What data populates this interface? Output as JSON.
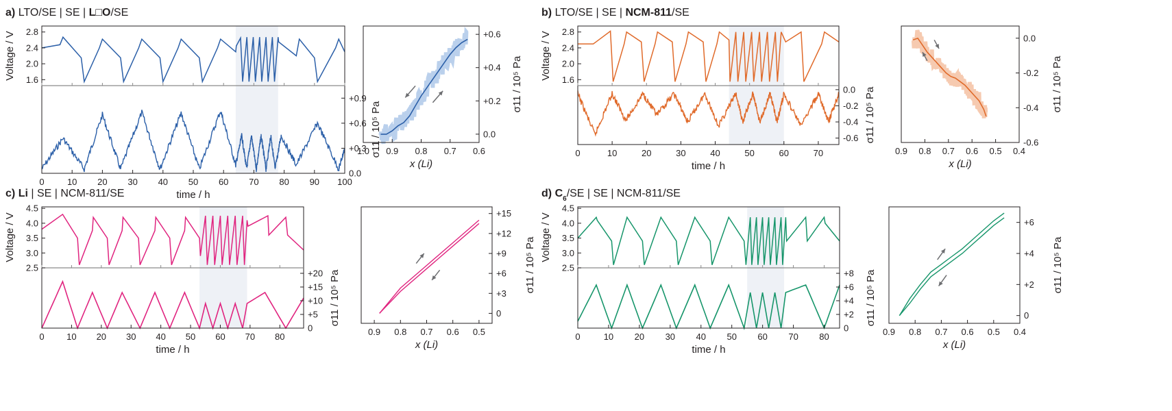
{
  "colors": {
    "a": "#2b5fa8",
    "a_light": "#9dbce4",
    "b": "#e06a2a",
    "b_light": "#f2b48e",
    "c": "#e0247f",
    "d": "#16956a",
    "axis": "#231f20",
    "shade": "#eef1f6",
    "arrow": "#6d6e71"
  },
  "chart_data": [
    {
      "panel": "a",
      "letter": "a)",
      "title_parts": [
        {
          "t": "LTO/SE | SE | ",
          "b": false
        },
        {
          "t": "L",
          "b": true
        },
        {
          "t": "□",
          "b": false
        },
        {
          "t": "O",
          "b": true
        },
        {
          "t": "/SE",
          "b": false
        }
      ],
      "type": "line",
      "time": {
        "xlabel": "time / h",
        "xlim": [
          0,
          100
        ],
        "xticks": [
          0,
          10,
          20,
          30,
          40,
          50,
          60,
          70,
          80,
          90,
          100
        ],
        "xticklabels": [
          "0",
          "10",
          "20",
          "30",
          "40",
          "50",
          "60",
          "70",
          "80",
          "90",
          "100"
        ],
        "shaded_range": [
          64,
          78
        ]
      },
      "voltage": {
        "ylabel": "Voltage / V",
        "ylim": [
          1.45,
          2.95
        ],
        "yticks": [
          1.6,
          2.0,
          2.4,
          2.8
        ],
        "yticklabels": [
          "1.6",
          "2.0",
          "2.4",
          "2.8"
        ],
        "t": [
          0,
          6,
          7,
          13,
          14,
          19,
          20,
          26,
          27,
          32,
          33,
          39,
          40,
          45,
          46,
          52,
          53,
          58,
          59,
          64,
          64.2,
          65.6,
          66.3,
          67.7,
          68.4,
          69.8,
          70.5,
          71.9,
          72.6,
          74,
          74.7,
          76.1,
          76.8,
          78,
          78.2,
          84,
          85,
          90,
          91,
          97,
          98,
          100
        ],
        "v": [
          2.4,
          2.48,
          2.67,
          2.15,
          1.55,
          2.4,
          2.62,
          2.15,
          1.55,
          2.4,
          2.62,
          2.15,
          1.55,
          2.4,
          2.62,
          2.15,
          1.55,
          2.4,
          2.62,
          2.3,
          2.45,
          2.65,
          1.55,
          2.67,
          1.55,
          2.67,
          1.55,
          2.67,
          1.55,
          2.67,
          1.55,
          2.67,
          1.55,
          2.67,
          2.55,
          2.2,
          2.62,
          2.15,
          1.55,
          2.4,
          2.62,
          2.3
        ]
      },
      "stress": {
        "ylabel": "σ11 / 10⁵ Pa",
        "ylim": [
          0,
          1.05
        ],
        "yticks": [
          0,
          0.3,
          0.6,
          0.9
        ],
        "yticklabels": [
          "0.0",
          "+0.3",
          "+0.6",
          "+0.9"
        ],
        "t": [
          0,
          7,
          14,
          20,
          26,
          33,
          39,
          46,
          52,
          59,
          64,
          66,
          67.6,
          69.2,
          70.8,
          72.4,
          74,
          75.6,
          77,
          79,
          84,
          91,
          98,
          100
        ],
        "s": [
          0.05,
          0.42,
          0.05,
          0.7,
          0.05,
          0.73,
          0.05,
          0.72,
          0.05,
          0.75,
          0.1,
          0.45,
          0.05,
          0.45,
          0.05,
          0.45,
          0.05,
          0.45,
          0.05,
          0.45,
          0.1,
          0.6,
          0.05,
          0.3
        ]
      },
      "scatter": {
        "xlabel": "x (Li)",
        "xlim": [
          1.0,
          0.6
        ],
        "xticks": [
          1.0,
          0.9,
          0.8,
          0.7,
          0.6
        ],
        "xticklabels": [
          "1.0",
          "0.9",
          "0.8",
          "0.7",
          "0.6"
        ],
        "ylabel": "σ11 / 10⁵ Pa",
        "ylim": [
          -0.05,
          0.65
        ],
        "yticks": [
          0,
          0.2,
          0.4,
          0.6
        ],
        "yticklabels": [
          "0.0",
          "+0.2",
          "+0.4",
          "+0.6"
        ],
        "x": [
          0.94,
          0.92,
          0.9,
          0.88,
          0.86,
          0.84,
          0.82,
          0.8,
          0.78,
          0.76,
          0.74,
          0.72,
          0.7,
          0.68,
          0.66,
          0.64
        ],
        "y": [
          0.0,
          0.0,
          0.02,
          0.05,
          0.07,
          0.11,
          0.17,
          0.23,
          0.28,
          0.33,
          0.38,
          0.43,
          0.48,
          0.52,
          0.55,
          0.57
        ],
        "spread": 0.06,
        "arrows": [
          {
            "x": 0.82,
            "y": 0.29,
            "dx": 0.035,
            "dy": -0.07
          },
          {
            "x": 0.76,
            "y": 0.19,
            "dx": -0.035,
            "dy": 0.07
          }
        ]
      }
    },
    {
      "panel": "b",
      "letter": "b)",
      "title_parts": [
        {
          "t": "LTO/SE | SE | ",
          "b": false
        },
        {
          "t": "NCM-811",
          "b": true
        },
        {
          "t": "/SE",
          "b": false
        }
      ],
      "type": "line",
      "time": {
        "xlabel": "time / h",
        "xlim": [
          0,
          76
        ],
        "xticks": [
          0,
          10,
          20,
          30,
          40,
          50,
          60,
          70
        ],
        "xticklabels": [
          "0",
          "10",
          "20",
          "30",
          "40",
          "50",
          "60",
          "70"
        ],
        "shaded_range": [
          44,
          60
        ]
      },
      "voltage": {
        "ylabel": "Voltage / V",
        "ylim": [
          1.45,
          2.95
        ],
        "yticks": [
          1.6,
          2.0,
          2.4,
          2.8
        ],
        "yticklabels": [
          "1.6",
          "2.0",
          "2.4",
          "2.8"
        ],
        "t": [
          0,
          4.5,
          5.3,
          9.5,
          10.3,
          13.5,
          14.2,
          18.5,
          19.3,
          22.5,
          23.2,
          27.5,
          28.3,
          31.5,
          32.2,
          36.5,
          37.3,
          40.5,
          41.2,
          44,
          44.3,
          46,
          46.6,
          48.3,
          48.9,
          50.6,
          51.2,
          52.9,
          53.5,
          55.2,
          55.8,
          57.5,
          58.1,
          59.2,
          60.5,
          65,
          65.8,
          71,
          71.8,
          76
        ],
        "v": [
          2.5,
          2.5,
          2.55,
          2.82,
          1.55,
          2.5,
          2.8,
          2.55,
          1.55,
          2.5,
          2.8,
          2.55,
          1.55,
          2.5,
          2.8,
          2.55,
          1.55,
          2.5,
          2.8,
          2.6,
          1.55,
          2.8,
          1.55,
          2.8,
          1.55,
          2.8,
          1.55,
          2.8,
          1.55,
          2.8,
          1.55,
          2.8,
          1.55,
          2.8,
          2.55,
          2.8,
          1.55,
          2.5,
          2.8,
          2.55
        ]
      },
      "stress": {
        "ylabel": "σ11 / 10⁵ Pa",
        "ylim": [
          -0.68,
          0.05
        ],
        "yticks": [
          0,
          -0.2,
          -0.4,
          -0.6
        ],
        "yticklabels": [
          "0.0",
          "-0.2",
          "-0.4",
          "-0.6"
        ],
        "t": [
          0,
          5,
          10,
          14,
          19,
          23,
          28,
          32,
          37,
          41,
          46,
          48,
          51,
          53,
          56,
          58,
          60,
          65,
          70,
          73,
          76
        ],
        "s": [
          -0.05,
          -0.56,
          -0.05,
          -0.38,
          -0.05,
          -0.32,
          -0.05,
          -0.4,
          -0.05,
          -0.45,
          -0.05,
          -0.4,
          -0.05,
          -0.4,
          -0.05,
          -0.4,
          -0.05,
          -0.45,
          -0.05,
          -0.4,
          -0.05
        ]
      },
      "scatter": {
        "xlabel": "x (Li)",
        "xlim": [
          0.9,
          0.4
        ],
        "xticks": [
          0.9,
          0.8,
          0.7,
          0.6,
          0.5,
          0.4
        ],
        "xticklabels": [
          "0.9",
          "0.8",
          "0.7",
          "0.6",
          "0.5",
          "0.4"
        ],
        "ylabel": "σ11 / 10⁵ Pa",
        "ylim": [
          -0.6,
          0.07
        ],
        "yticks": [
          0,
          -0.2,
          -0.4,
          -0.6
        ],
        "yticklabels": [
          "0.0",
          "-0.2",
          "-0.4",
          "-0.6"
        ],
        "x": [
          0.85,
          0.83,
          0.81,
          0.79,
          0.77,
          0.75,
          0.73,
          0.71,
          0.69,
          0.67,
          0.65,
          0.63,
          0.61,
          0.59,
          0.57,
          0.55,
          0.54
        ],
        "y": [
          -0.01,
          0.0,
          -0.04,
          -0.08,
          -0.11,
          -0.14,
          -0.17,
          -0.2,
          -0.22,
          -0.23,
          -0.25,
          -0.27,
          -0.3,
          -0.33,
          -0.36,
          -0.41,
          -0.45
        ],
        "spread": 0.05,
        "arrows": [
          {
            "x": 0.76,
            "y": -0.01,
            "dx": -0.02,
            "dy": -0.05
          },
          {
            "x": 0.79,
            "y": -0.13,
            "dx": 0.02,
            "dy": 0.05
          }
        ]
      }
    },
    {
      "panel": "c",
      "letter": "c)",
      "title_parts": [
        {
          "t": "Li",
          "b": true
        },
        {
          "t": " | SE | NCM-811/SE",
          "b": false
        }
      ],
      "type": "line",
      "time": {
        "xlabel": "time / h",
        "xlim": [
          0,
          88
        ],
        "xticks": [
          0,
          10,
          20,
          30,
          40,
          50,
          60,
          70,
          80
        ],
        "xticklabels": [
          "0",
          "10",
          "20",
          "30",
          "40",
          "50",
          "60",
          "70",
          "80"
        ],
        "shaded_range": [
          53,
          69
        ]
      },
      "voltage": {
        "ylabel": "Voltage / V",
        "ylim": [
          2.5,
          4.55
        ],
        "yticks": [
          2.5,
          3.0,
          3.5,
          4.0,
          4.5
        ],
        "yticklabels": [
          "2.5",
          "3.0",
          "3.5",
          "4.0",
          "4.5"
        ],
        "t": [
          0,
          7,
          7.3,
          12,
          12.6,
          17,
          17.3,
          22,
          22.6,
          27,
          27.3,
          32.5,
          33,
          38,
          38.3,
          43,
          43.6,
          48,
          48.3,
          53,
          53.3,
          55,
          55.6,
          57.5,
          58.1,
          60,
          60.6,
          62.5,
          63.1,
          65,
          65.6,
          67.5,
          68.1,
          69,
          69.3,
          76,
          76.3,
          82,
          82.6,
          88
        ],
        "v": [
          3.8,
          4.3,
          4.25,
          3.5,
          2.6,
          3.75,
          4.2,
          3.5,
          2.6,
          3.75,
          4.2,
          3.5,
          2.6,
          3.75,
          4.2,
          3.5,
          2.6,
          3.75,
          4.2,
          3.5,
          2.9,
          4.25,
          2.6,
          4.25,
          2.6,
          4.25,
          2.6,
          4.25,
          2.6,
          4.25,
          2.6,
          4.25,
          2.6,
          4.1,
          3.9,
          4.25,
          3.6,
          4.2,
          3.6,
          3.1
        ]
      },
      "stress": {
        "ylabel": "σ11 / 10⁵ Pa",
        "ylim": [
          0,
          22
        ],
        "yticks": [
          0,
          5,
          10,
          15,
          20
        ],
        "yticklabels": [
          "0",
          "+5",
          "+10",
          "+15",
          "+20"
        ],
        "t": [
          0,
          7,
          12,
          17,
          22,
          27,
          33,
          38,
          43,
          48,
          53,
          55,
          57.5,
          60,
          62.5,
          65,
          67.5,
          69,
          75,
          82,
          88
        ],
        "s": [
          0,
          17,
          0,
          13,
          0,
          13,
          0,
          13,
          0,
          13,
          0,
          9,
          0,
          9,
          0,
          9,
          0,
          9,
          13,
          0,
          11
        ]
      },
      "scatter": {
        "xlabel": "x (Li)",
        "xlim": [
          0.95,
          0.45
        ],
        "xticks": [
          0.9,
          0.8,
          0.7,
          0.6,
          0.5
        ],
        "xticklabels": [
          "0.9",
          "0.8",
          "0.7",
          "0.6",
          "0.5"
        ],
        "ylabel": "σ11 / 10⁵ Pa",
        "ylim": [
          -1.5,
          16
        ],
        "yticks": [
          0,
          3,
          6,
          9,
          12,
          15
        ],
        "yticklabels": [
          "0",
          "+3",
          "+6",
          "+9",
          "+12",
          "+15"
        ],
        "x": [
          0.88,
          0.8,
          0.7,
          0.6,
          0.5
        ],
        "y": [
          0,
          3.3,
          6.7,
          10.1,
          13.5
        ],
        "offset": 0.5,
        "arrows": [
          {
            "x": 0.74,
            "y": 7.5,
            "dx": -0.03,
            "dy": 1.5
          },
          {
            "x": 0.65,
            "y": 6.5,
            "dx": 0.03,
            "dy": -1.5
          }
        ]
      }
    },
    {
      "panel": "d",
      "letter": "d)",
      "title_parts": [
        {
          "t": "C",
          "b": true
        },
        {
          "t": "6",
          "b": true,
          "sub": true
        },
        {
          "t": "/SE | SE | NCM-811/SE",
          "b": false
        }
      ],
      "type": "line",
      "time": {
        "xlabel": "time / h",
        "xlim": [
          0,
          85
        ],
        "xticks": [
          0,
          10,
          20,
          30,
          40,
          50,
          60,
          70,
          80
        ],
        "xticklabels": [
          "0",
          "10",
          "20",
          "30",
          "40",
          "50",
          "60",
          "70",
          "80"
        ],
        "shaded_range": [
          55,
          67
        ]
      },
      "voltage": {
        "ylabel": "Voltage / V",
        "ylim": [
          2.5,
          4.55
        ],
        "yticks": [
          2.5,
          3.0,
          3.5,
          4.0,
          4.5
        ],
        "yticklabels": [
          "2.5",
          "3.0",
          "3.5",
          "4.0",
          "4.5"
        ],
        "t": [
          0,
          6,
          6.3,
          11,
          11.6,
          16,
          16.3,
          21,
          21.6,
          27,
          27.3,
          32,
          32.6,
          38,
          38.3,
          43,
          43.6,
          49,
          49.3,
          54,
          54.6,
          56,
          56.5,
          58,
          58.5,
          60,
          60.5,
          62,
          62.5,
          64,
          64.5,
          66,
          66.5,
          67.5,
          67.8,
          74,
          74.5,
          80,
          80.3,
          85
        ],
        "v": [
          3.5,
          4.2,
          4.1,
          3.4,
          2.6,
          4.2,
          4.15,
          3.4,
          2.6,
          4.2,
          4.15,
          3.4,
          2.6,
          4.2,
          4.15,
          3.4,
          2.6,
          4.2,
          4.15,
          3.4,
          2.6,
          4.2,
          2.6,
          4.2,
          2.6,
          4.2,
          2.6,
          4.2,
          2.6,
          4.2,
          2.6,
          4.2,
          2.6,
          4.2,
          3.4,
          4.2,
          3.4,
          4.2,
          4.0,
          3.4
        ]
      },
      "stress": {
        "ylabel": "σ11 / 10⁵ Pa",
        "ylim": [
          0,
          8.8
        ],
        "yticks": [
          0,
          2,
          4,
          6,
          8
        ],
        "yticklabels": [
          "0",
          "+2",
          "+4",
          "+6",
          "+8"
        ],
        "t": [
          0,
          6,
          11,
          16,
          21,
          27,
          32,
          38,
          43,
          49,
          54,
          56,
          58,
          60,
          62,
          64,
          66,
          67.5,
          74,
          80,
          85
        ],
        "s": [
          1,
          6.3,
          0,
          6.3,
          0,
          6.3,
          0,
          6.3,
          0,
          6.3,
          0,
          5.2,
          0,
          5.2,
          0,
          5.2,
          0,
          5.2,
          6.3,
          0,
          6.3
        ]
      },
      "scatter": {
        "xlabel": "x (Li)",
        "xlim": [
          0.9,
          0.4
        ],
        "xticks": [
          0.9,
          0.8,
          0.7,
          0.6,
          0.5,
          0.4
        ],
        "xticklabels": [
          "0.9",
          "0.8",
          "0.7",
          "0.6",
          "0.5",
          "0.4"
        ],
        "ylabel": "σ11 / 10⁵ Pa",
        "ylim": [
          -0.5,
          7
        ],
        "yticks": [
          0,
          2,
          4,
          6
        ],
        "yticklabels": [
          "0",
          "+2",
          "+4",
          "+6"
        ],
        "x": [
          0.86,
          0.82,
          0.78,
          0.74,
          0.7,
          0.66,
          0.62,
          0.58,
          0.54,
          0.5,
          0.46
        ],
        "y": [
          0,
          0.8,
          1.7,
          2.5,
          3.0,
          3.5,
          4.0,
          4.6,
          5.2,
          5.8,
          6.3
        ],
        "offset": 0.3,
        "arrows": [
          {
            "x": 0.715,
            "y": 3.6,
            "dx": -0.03,
            "dy": 0.7
          },
          {
            "x": 0.68,
            "y": 2.6,
            "dx": 0.03,
            "dy": -0.7
          }
        ]
      }
    }
  ]
}
